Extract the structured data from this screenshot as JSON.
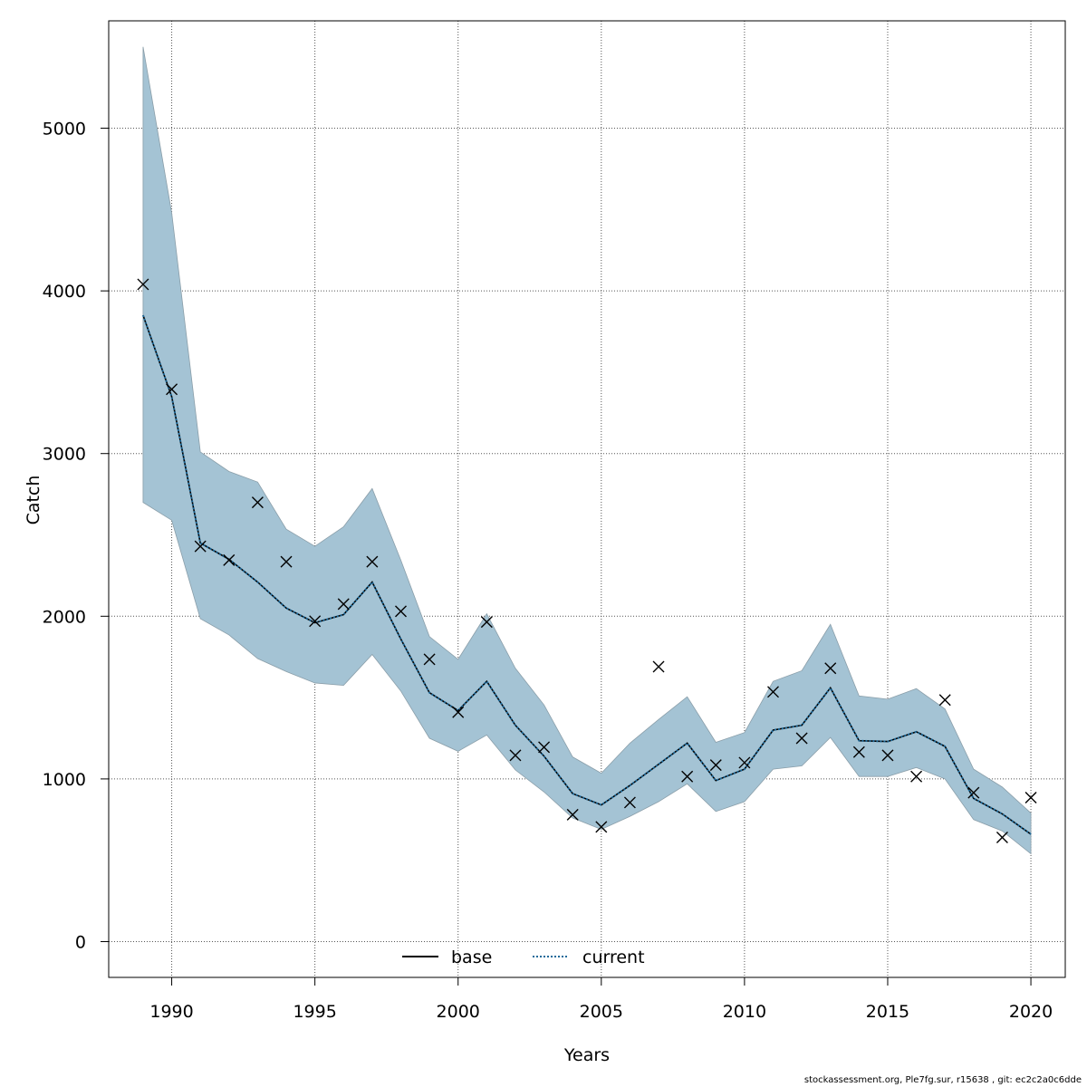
{
  "chart_data": {
    "type": "line",
    "title": "",
    "xlabel": "Years",
    "ylabel": "Catch",
    "xlim": [
      1987.8,
      2021.2
    ],
    "ylim": [
      -220,
      5660
    ],
    "x_ticks": [
      1990,
      1995,
      2000,
      2005,
      2010,
      2015,
      2020
    ],
    "y_ticks": [
      0,
      1000,
      2000,
      3000,
      4000,
      5000
    ],
    "grid": true,
    "legend_position": "bottom-center",
    "x": [
      1989,
      1990,
      1991,
      1992,
      1993,
      1994,
      1995,
      1996,
      1997,
      1998,
      1999,
      2000,
      2001,
      2002,
      2003,
      2004,
      2005,
      2006,
      2007,
      2008,
      2009,
      2010,
      2011,
      2012,
      2013,
      2014,
      2015,
      2016,
      2017,
      2018,
      2019,
      2020
    ],
    "band": {
      "color": "#a4c3d4",
      "lower": [
        2700,
        2590,
        1985,
        1885,
        1740,
        1660,
        1590,
        1575,
        1765,
        1540,
        1250,
        1170,
        1270,
        1055,
        920,
        760,
        690,
        770,
        860,
        970,
        800,
        860,
        1060,
        1080,
        1255,
        1015,
        1015,
        1070,
        1000,
        750,
        680,
        540
      ],
      "upper": [
        5500,
        4480,
        3010,
        2890,
        2825,
        2535,
        2430,
        2550,
        2785,
        2345,
        1875,
        1735,
        2015,
        1680,
        1455,
        1135,
        1035,
        1220,
        1365,
        1505,
        1225,
        1285,
        1600,
        1665,
        1950,
        1510,
        1490,
        1555,
        1430,
        1060,
        950,
        790
      ]
    },
    "series": [
      {
        "name": "base",
        "style": "solid",
        "color": "#000000",
        "values": [
          3850,
          3350,
          2450,
          2350,
          2210,
          2050,
          1960,
          2010,
          2210,
          1860,
          1530,
          1420,
          1600,
          1330,
          1140,
          910,
          840,
          960,
          1090,
          1220,
          990,
          1060,
          1300,
          1330,
          1560,
          1235,
          1230,
          1290,
          1200,
          880,
          785,
          660
        ]
      },
      {
        "name": "current",
        "style": "dotted",
        "color": "#1f6a9a",
        "values": [
          3850,
          3350,
          2450,
          2350,
          2210,
          2050,
          1960,
          2010,
          2210,
          1860,
          1530,
          1420,
          1600,
          1330,
          1140,
          910,
          840,
          960,
          1090,
          1220,
          990,
          1060,
          1300,
          1330,
          1560,
          1235,
          1230,
          1290,
          1200,
          880,
          785,
          660
        ]
      }
    ],
    "observations": [
      4040,
      3395,
      2430,
      2345,
      2700,
      2335,
      1970,
      2075,
      2335,
      2030,
      1735,
      1410,
      1965,
      1145,
      1195,
      780,
      705,
      855,
      1690,
      1015,
      1085,
      1100,
      1535,
      1250,
      1680,
      1165,
      1145,
      1015,
      1485,
      915,
      640,
      885
    ]
  },
  "footer_text": "stockassessment.org, Ple7fg.sur, r15638 , git: ec2c2a0c6dde"
}
